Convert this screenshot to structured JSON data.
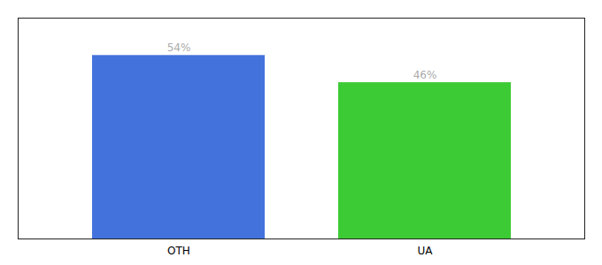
{
  "chart_data": {
    "type": "bar",
    "categories": [
      "OTH",
      "UA"
    ],
    "values": [
      54,
      46
    ],
    "value_labels": [
      "54%",
      "46%"
    ],
    "colors": [
      "#4472dd",
      "#3dcb35"
    ],
    "ylim": [
      0,
      65
    ],
    "data_labels": true,
    "tick_labels": "x",
    "grid": false
  }
}
